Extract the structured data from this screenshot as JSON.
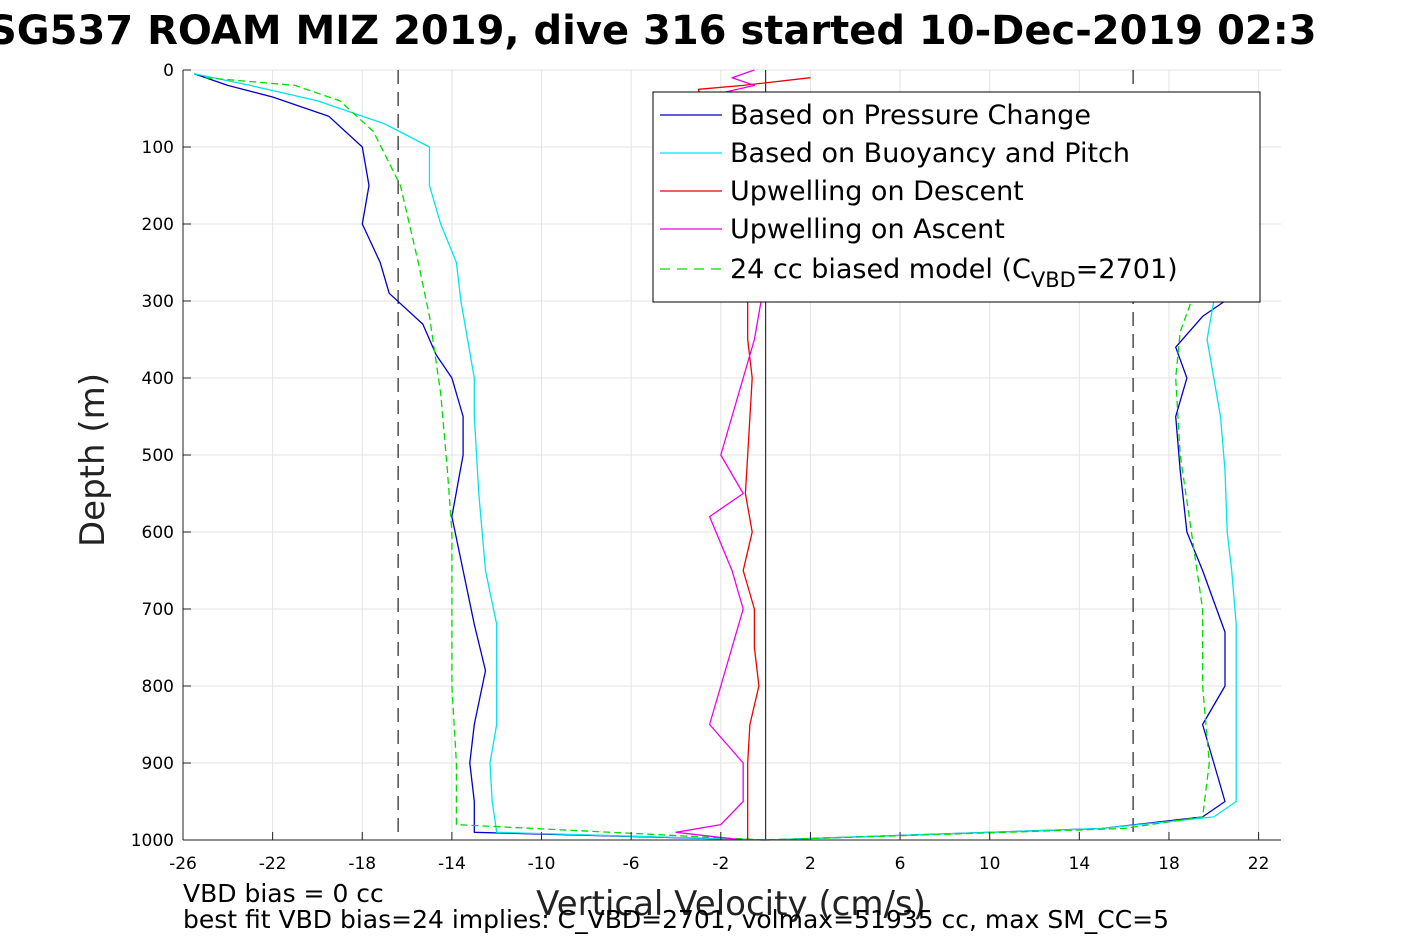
{
  "chart_data": {
    "type": "line",
    "title": "SG537 ROAM MIZ 2019, dive 316 started 10-Dec-2019 02:3",
    "xlabel": "Vertical Velocity (cm/s)",
    "ylabel": "Depth (m)",
    "xlim": [
      -26,
      23
    ],
    "ylim": [
      0,
      1000
    ],
    "y_reversed": true,
    "grid": true,
    "x_ticks": [
      "-26",
      "-22",
      "-18",
      "-14",
      "-10",
      "-6",
      "-2",
      "2",
      "6",
      "10",
      "14",
      "18",
      "22"
    ],
    "y_ticks": [
      "0",
      "100",
      "200",
      "300",
      "400",
      "500",
      "600",
      "700",
      "800",
      "900",
      "1000"
    ],
    "reference_lines": {
      "vertical_solid_x": 0,
      "vertical_dashed_x": [
        -16.4,
        16.4
      ]
    },
    "legend_placement": "top-right",
    "legend": {
      "pressure_change": "Based on Pressure Change",
      "buoyancy_pitch": "Based on Buoyancy and Pitch",
      "upwelling_descent": "Upwelling on Descent",
      "upwelling_ascent": "Upwelling on Ascent",
      "model_prefix": "24 cc biased model (C",
      "model_sub": "VBD",
      "model_suffix": "=2701)"
    },
    "colors": {
      "pressure_change": "#0000cc",
      "buoyancy_pitch": "#00e5ee",
      "upwelling_descent": "#ee0000",
      "upwelling_ascent": "#ee00ee",
      "model": "#00dd00"
    },
    "series": [
      {
        "key": "pressure_change",
        "color": "#0000cc",
        "points": [
          [
            -25.5,
            5
          ],
          [
            -24,
            20
          ],
          [
            -22,
            35
          ],
          [
            -19.5,
            60
          ],
          [
            -18,
            100
          ],
          [
            -17.7,
            150
          ],
          [
            -18,
            200
          ],
          [
            -17.2,
            250
          ],
          [
            -16.8,
            290
          ],
          [
            -15.3,
            330
          ],
          [
            -14.7,
            370
          ],
          [
            -14,
            400
          ],
          [
            -13.5,
            450
          ],
          [
            -13.5,
            500
          ],
          [
            -14,
            580
          ],
          [
            -13.5,
            650
          ],
          [
            -13,
            720
          ],
          [
            -12.5,
            780
          ],
          [
            -13,
            850
          ],
          [
            -13.2,
            900
          ],
          [
            -13,
            950
          ],
          [
            -13,
            990
          ],
          [
            0,
            1000
          ],
          [
            15,
            985
          ],
          [
            19.5,
            970
          ],
          [
            20.5,
            950
          ],
          [
            20,
            900
          ],
          [
            19.5,
            850
          ],
          [
            20.5,
            800
          ],
          [
            20.5,
            730
          ],
          [
            19.5,
            650
          ],
          [
            18.8,
            600
          ],
          [
            18.5,
            520
          ],
          [
            18.3,
            450
          ],
          [
            18.8,
            400
          ],
          [
            18.3,
            360
          ],
          [
            19.5,
            320
          ],
          [
            20.5,
            300
          ]
        ]
      },
      {
        "key": "buoyancy_pitch",
        "color": "#00e5ee",
        "points": [
          [
            -25.5,
            5
          ],
          [
            -23,
            20
          ],
          [
            -20,
            40
          ],
          [
            -17,
            70
          ],
          [
            -15,
            100
          ],
          [
            -15,
            150
          ],
          [
            -14.5,
            200
          ],
          [
            -13.8,
            250
          ],
          [
            -13.6,
            300
          ],
          [
            -13.3,
            350
          ],
          [
            -13,
            400
          ],
          [
            -13,
            450
          ],
          [
            -12.8,
            550
          ],
          [
            -12.5,
            650
          ],
          [
            -12,
            720
          ],
          [
            -12,
            780
          ],
          [
            -12,
            850
          ],
          [
            -12.3,
            900
          ],
          [
            -12.2,
            950
          ],
          [
            -12,
            990
          ],
          [
            0,
            1000
          ],
          [
            15,
            985
          ],
          [
            20,
            970
          ],
          [
            21,
            950
          ],
          [
            21,
            900
          ],
          [
            21,
            850
          ],
          [
            21,
            800
          ],
          [
            21,
            720
          ],
          [
            20.8,
            650
          ],
          [
            20.6,
            600
          ],
          [
            20.5,
            520
          ],
          [
            20.3,
            450
          ],
          [
            20,
            400
          ],
          [
            19.7,
            350
          ],
          [
            20,
            300
          ]
        ]
      },
      {
        "key": "model",
        "color": "#00dd00",
        "dashed": true,
        "points": [
          [
            -25,
            10
          ],
          [
            -21,
            20
          ],
          [
            -19,
            40
          ],
          [
            -17.5,
            80
          ],
          [
            -16.3,
            150
          ],
          [
            -15.5,
            250
          ],
          [
            -15,
            320
          ],
          [
            -14.5,
            420
          ],
          [
            -14.2,
            520
          ],
          [
            -14,
            600
          ],
          [
            -14,
            700
          ],
          [
            -14,
            800
          ],
          [
            -13.8,
            900
          ],
          [
            -13.8,
            980
          ],
          [
            0,
            1000
          ],
          [
            16,
            985
          ],
          [
            19.5,
            970
          ],
          [
            19.8,
            900
          ],
          [
            19.5,
            800
          ],
          [
            19.5,
            700
          ],
          [
            19,
            600
          ],
          [
            18.5,
            500
          ],
          [
            18.3,
            400
          ],
          [
            18.5,
            340
          ],
          [
            19,
            300
          ]
        ]
      },
      {
        "key": "upwelling_descent",
        "color": "#ee0000",
        "points": [
          [
            2,
            10
          ],
          [
            -1,
            20
          ],
          [
            -3,
            25
          ],
          [
            -0.8,
            300
          ],
          [
            -0.8,
            350
          ],
          [
            -0.6,
            400
          ],
          [
            -0.8,
            500
          ],
          [
            -0.9,
            550
          ],
          [
            -0.6,
            600
          ],
          [
            -1,
            650
          ],
          [
            -0.5,
            700
          ],
          [
            -0.5,
            750
          ],
          [
            -0.3,
            800
          ],
          [
            -0.7,
            850
          ],
          [
            -0.8,
            900
          ],
          [
            -0.8,
            950
          ],
          [
            -0.8,
            1000
          ]
        ]
      },
      {
        "key": "upwelling_ascent",
        "color": "#ee00ee",
        "points": [
          [
            -0.5,
            0
          ],
          [
            -1.5,
            10
          ],
          [
            -0.5,
            20
          ],
          [
            -2,
            30
          ],
          [
            -0.2,
            300
          ],
          [
            -0.5,
            350
          ],
          [
            -1,
            400
          ],
          [
            -1.5,
            450
          ],
          [
            -2,
            500
          ],
          [
            -1,
            550
          ],
          [
            -2.5,
            580
          ],
          [
            -1.5,
            650
          ],
          [
            -1,
            700
          ],
          [
            -1.5,
            750
          ],
          [
            -2,
            800
          ],
          [
            -2.5,
            850
          ],
          [
            -1,
            900
          ],
          [
            -1,
            950
          ],
          [
            -2,
            980
          ],
          [
            -4,
            990
          ],
          [
            -1,
            1000
          ]
        ]
      }
    ]
  },
  "notes": {
    "line1": "VBD bias = 0 cc",
    "line2": "best fit VBD bias=24 implies: C_VBD=2701, volmax=51935 cc, max SM_CC=5"
  }
}
